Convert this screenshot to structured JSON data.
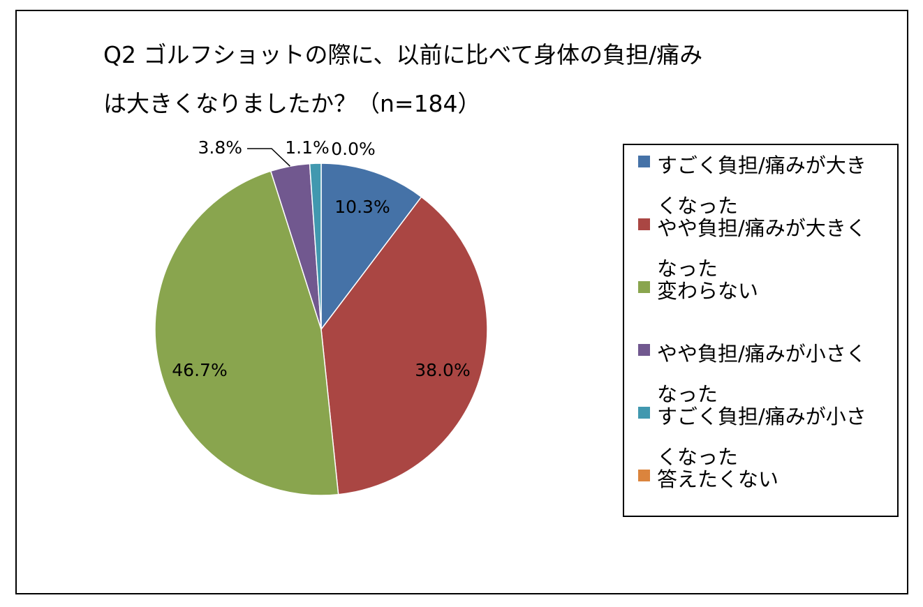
{
  "chart_data": {
    "type": "pie",
    "title_lines": [
      "Q2 ゴルフショットの際に、以前に比べて身体の負担/痛み",
      "は大きくなりましたか？（n=184）"
    ],
    "slices": [
      {
        "label": "すごく負担/痛みが大きくなった",
        "value": 10.3,
        "display": "10.3%",
        "color": "#4572a7"
      },
      {
        "label": "やや負担/痛みが大きくなった",
        "value": 38.0,
        "display": "38.0%",
        "color": "#aa4643"
      },
      {
        "label": "変わらない",
        "value": 46.7,
        "display": "46.7%",
        "color": "#89a54e"
      },
      {
        "label": "やや負担/痛みが小さくなった",
        "value": 3.8,
        "display": "3.8%",
        "color": "#71588f"
      },
      {
        "label": "すごく負担/痛みが小さくなった",
        "value": 1.1,
        "display": "1.1%",
        "color": "#4198af"
      },
      {
        "label": "答えたくない",
        "value": 0.0,
        "display": "0.0%",
        "color": "#db843d"
      }
    ],
    "start_angle": "12 o'clock",
    "direction": "clockwise",
    "legend_position": "right"
  }
}
